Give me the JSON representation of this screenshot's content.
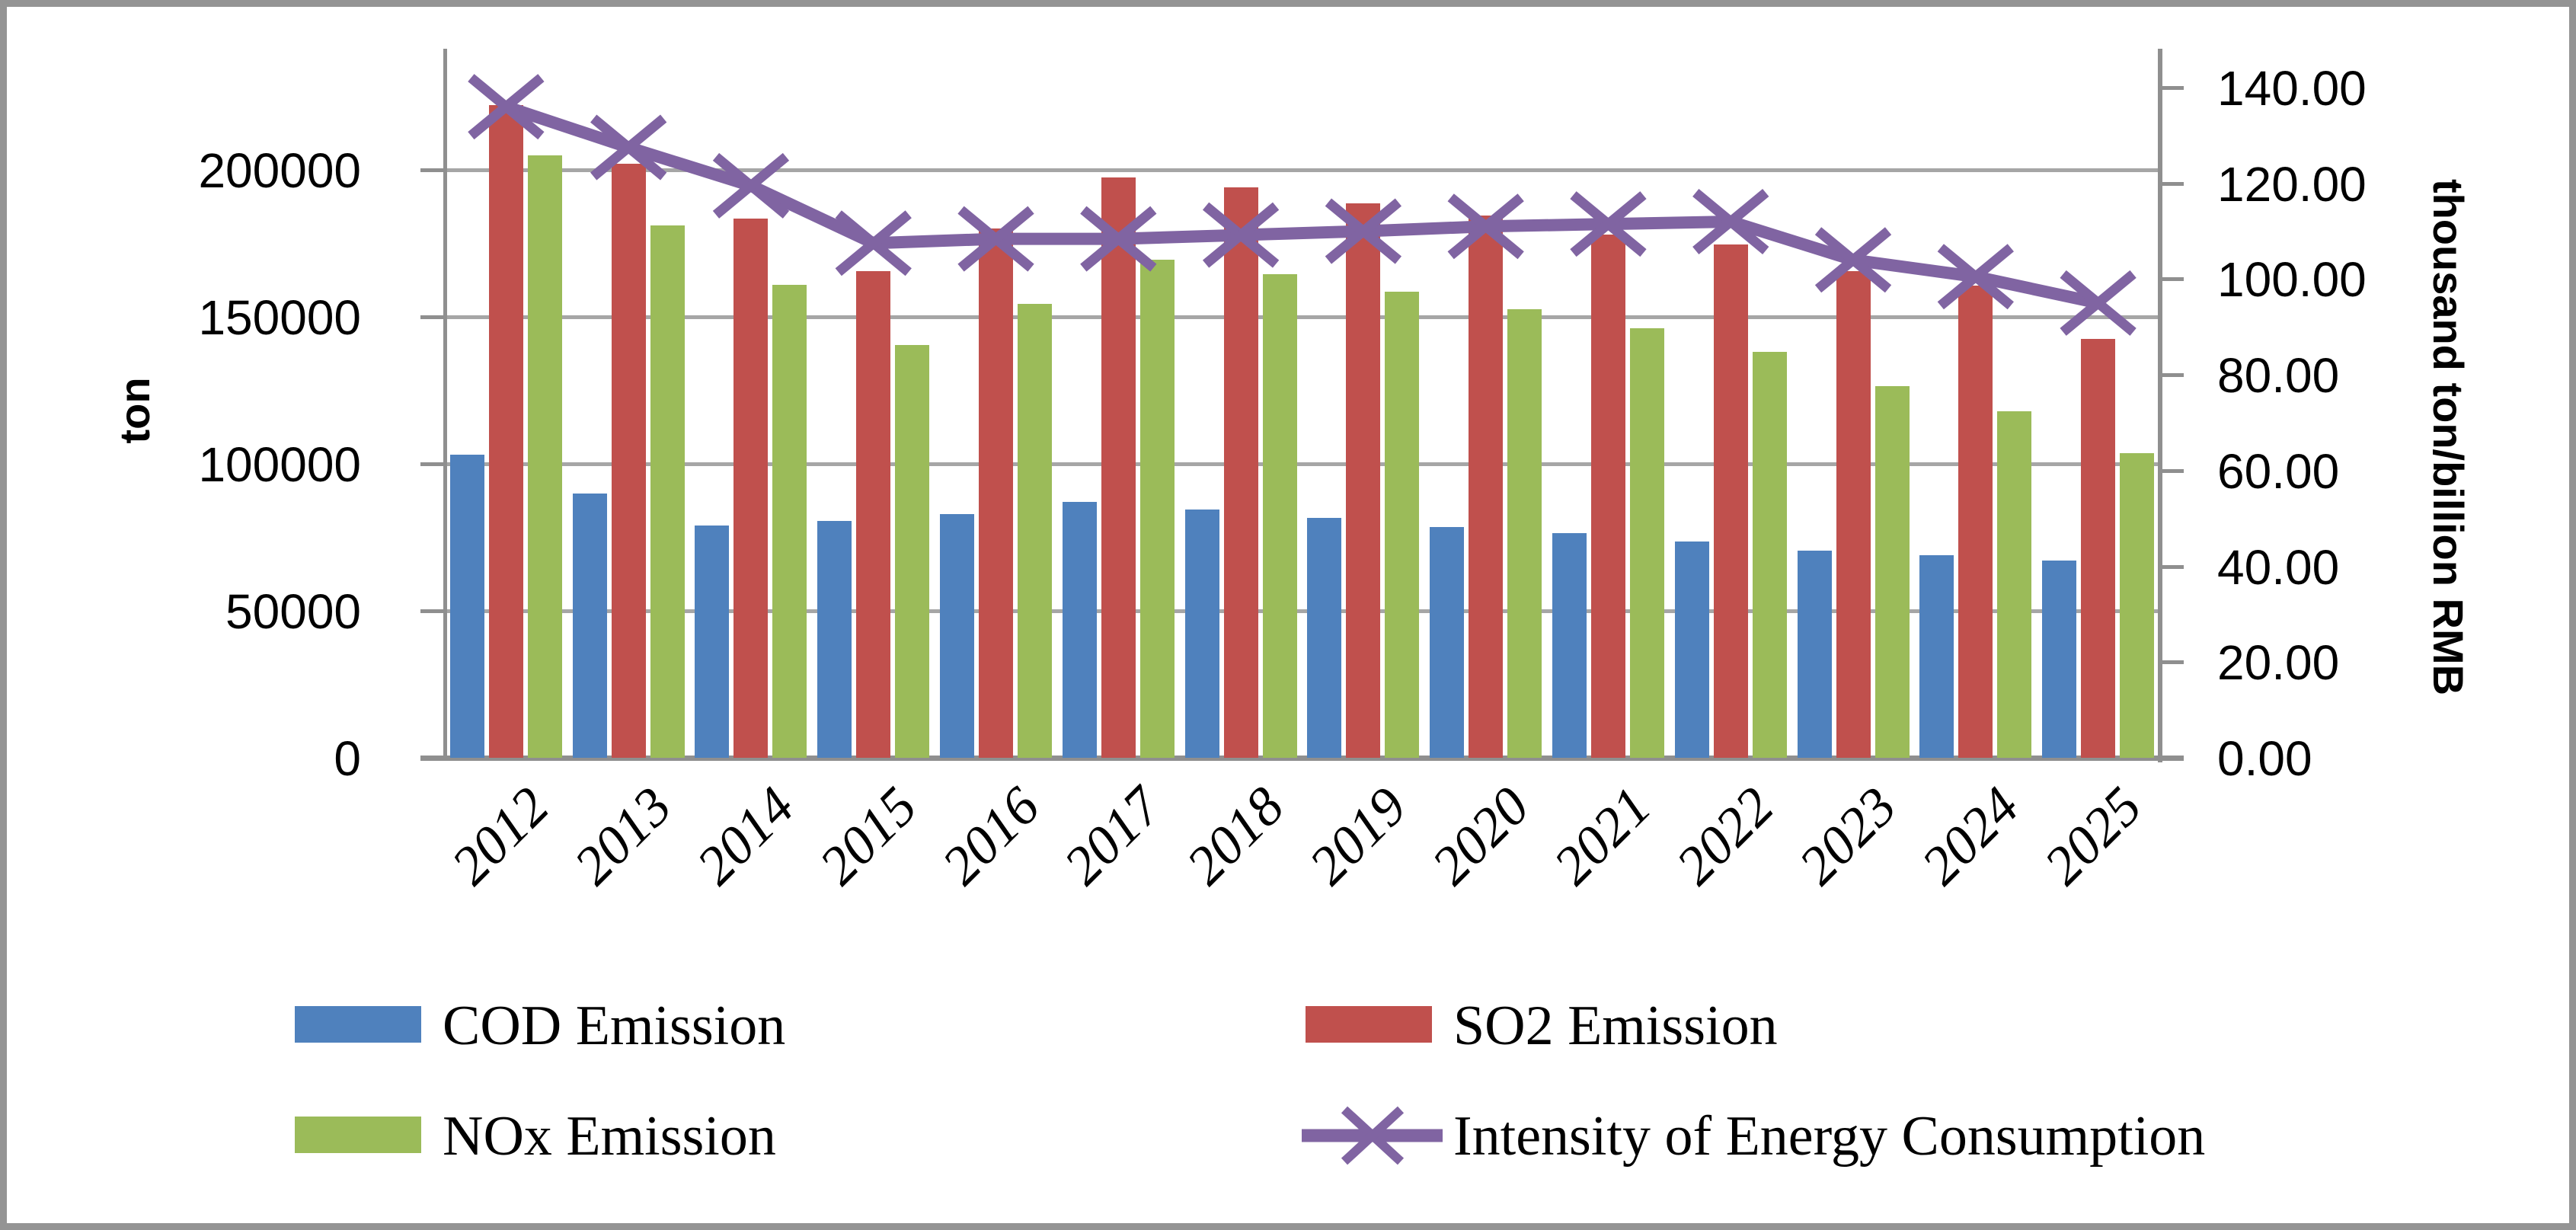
{
  "chart_data": {
    "type": "bar",
    "subtype": "combo-bar-line-dual-axis",
    "title": "",
    "categories": [
      "2012",
      "2013",
      "2014",
      "2015",
      "2016",
      "2017",
      "2018",
      "2019",
      "2020",
      "2021",
      "2022",
      "2023",
      "2024",
      "2025"
    ],
    "series": [
      {
        "name": "COD Emission",
        "type": "bar",
        "axis": "left",
        "color": "#4F81BD",
        "values": [
          103000,
          90000,
          79000,
          80500,
          83000,
          87000,
          84500,
          81500,
          78500,
          76500,
          73500,
          70500,
          69000,
          67000
        ]
      },
      {
        "name": "SO2 Emission",
        "type": "bar",
        "axis": "left",
        "color": "#C0504D",
        "values": [
          222000,
          202000,
          183500,
          165500,
          180000,
          197500,
          194000,
          188500,
          184500,
          178000,
          174500,
          165500,
          160500,
          142500
        ]
      },
      {
        "name": "NOx Emission",
        "type": "bar",
        "axis": "left",
        "color": "#9BBB59",
        "values": [
          205000,
          181000,
          161000,
          140500,
          154500,
          169500,
          164500,
          158500,
          152500,
          146000,
          138000,
          126500,
          118000,
          103500
        ]
      },
      {
        "name": "Intensity of Energy Consumption",
        "type": "line",
        "axis": "right",
        "color": "#8064A2",
        "marker": "x",
        "values": [
          136.0,
          127.5,
          119.5,
          107.5,
          108.4,
          108.4,
          109.2,
          110.0,
          111.0,
          111.5,
          112.0,
          104.0,
          100.5,
          95.0
        ]
      }
    ],
    "left_axis": {
      "label": "ton",
      "min": 0,
      "max": 241000,
      "tick_interval": 50000,
      "tick_values": [
        0,
        50000,
        100000,
        150000,
        200000
      ],
      "tick_labels": [
        "0",
        "50000",
        "100000",
        "150000",
        "200000"
      ]
    },
    "right_axis": {
      "label": "thousand ton/billion RMB",
      "min": 0,
      "max": 148,
      "tick_interval": 20,
      "tick_values": [
        0,
        20,
        40,
        60,
        80,
        100,
        120,
        140
      ],
      "tick_labels": [
        "0.00",
        "20.00",
        "40.00",
        "60.00",
        "80.00",
        "100.00",
        "120.00",
        "140.00"
      ]
    },
    "legend_position": "bottom",
    "grid": "horizontal"
  },
  "colors": {
    "gridline": "#A6A6A6",
    "axis": "#8F8F8F",
    "frame": "#949494",
    "text": "#000000"
  }
}
